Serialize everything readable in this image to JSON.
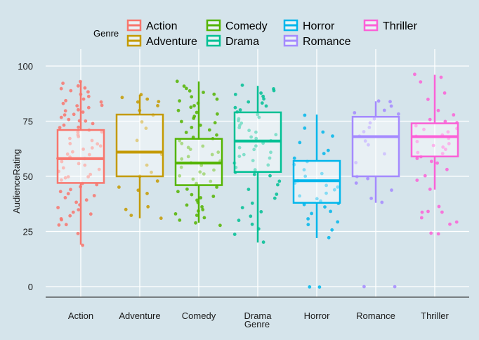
{
  "chart_data": {
    "type": "boxplot",
    "xlabel": "Genre",
    "ylabel": "AudienceRating",
    "ylim": [
      -5,
      105
    ],
    "yticks": [
      0,
      25,
      50,
      75,
      100
    ],
    "legend": {
      "title": "Genre",
      "placement": "top"
    },
    "grid": true,
    "series": [
      {
        "name": "Action",
        "color": "#f8766d",
        "min": 19,
        "q1": 47,
        "median": 58,
        "q3": 71,
        "max": 93,
        "points": [
          93,
          92,
          91,
          90,
          90,
          89,
          88,
          87,
          86,
          85,
          84,
          84,
          83,
          82,
          82,
          81,
          80,
          80,
          79,
          78,
          78,
          77,
          76,
          75,
          75,
          74,
          73,
          72,
          72,
          71,
          70,
          70,
          69,
          68,
          67,
          66,
          65,
          65,
          64,
          63,
          62,
          61,
          60,
          60,
          59,
          58,
          58,
          57,
          56,
          55,
          54,
          53,
          52,
          51,
          50,
          50,
          49,
          48,
          47,
          46,
          45,
          44,
          43,
          42,
          41,
          40,
          39,
          38,
          37,
          36,
          35,
          34,
          33,
          32,
          31,
          30,
          28,
          28,
          24,
          19
        ]
      },
      {
        "name": "Adventure",
        "color": "#c49a00",
        "min": 31,
        "q1": 50,
        "median": 61,
        "q3": 78,
        "max": 87,
        "points": [
          87,
          86,
          85,
          84,
          84,
          82,
          80,
          78,
          75,
          72,
          66,
          60,
          55,
          52,
          50,
          48,
          45,
          44,
          42,
          36,
          35,
          32,
          31
        ]
      },
      {
        "name": "Comedy",
        "color": "#53b400",
        "min": 29,
        "q1": 46,
        "median": 56,
        "q3": 67,
        "max": 93,
        "points": [
          93,
          91,
          90,
          89,
          88,
          87,
          86,
          85,
          84,
          83,
          82,
          81,
          80,
          79,
          78,
          77,
          76,
          75,
          74,
          73,
          72,
          71,
          70,
          69,
          68,
          67,
          66,
          65,
          64,
          63,
          62,
          61,
          60,
          59,
          58,
          57,
          56,
          55,
          54,
          53,
          52,
          51,
          50,
          49,
          48,
          47,
          46,
          45,
          44,
          43,
          42,
          41,
          40,
          39,
          38,
          37,
          36,
          35,
          34,
          33,
          32,
          31,
          30,
          29,
          28
        ]
      },
      {
        "name": "Drama",
        "color": "#00c094",
        "min": 20,
        "q1": 52,
        "median": 66,
        "q3": 79,
        "max": 91,
        "points": [
          91,
          90,
          89,
          88,
          87,
          86,
          85,
          84,
          83,
          82,
          81,
          80,
          79,
          78,
          77,
          76,
          75,
          74,
          73,
          72,
          71,
          70,
          69,
          68,
          67,
          66,
          65,
          64,
          63,
          62,
          61,
          60,
          59,
          58,
          57,
          56,
          55,
          54,
          53,
          52,
          51,
          50,
          48,
          46,
          44,
          42,
          40,
          38,
          36,
          34,
          32,
          30,
          28,
          26,
          24,
          20
        ]
      },
      {
        "name": "Horror",
        "color": "#00b6eb",
        "min": 22,
        "q1": 38,
        "median": 48,
        "q3": 57,
        "max": 78,
        "points": [
          78,
          72,
          70,
          68,
          65,
          62,
          60,
          58,
          57,
          55,
          53,
          51,
          50,
          48,
          47,
          46,
          45,
          44,
          42,
          41,
          40,
          39,
          38,
          37,
          36,
          34,
          33,
          31,
          29,
          28,
          26,
          22,
          0,
          0
        ]
      },
      {
        "name": "Romance",
        "color": "#a58aff",
        "min": 38,
        "q1": 50,
        "median": 68,
        "q3": 77,
        "max": 84,
        "points": [
          84,
          84,
          82,
          80,
          79,
          78,
          76,
          74,
          72,
          70,
          68,
          66,
          64,
          60,
          56,
          50,
          49,
          47,
          44,
          40,
          38,
          0,
          0
        ]
      },
      {
        "name": "Thriller",
        "color": "#fb61d7",
        "min": 44,
        "q1": 59,
        "median": 68,
        "q3": 74,
        "max": 96,
        "points": [
          96,
          95,
          93,
          88,
          85,
          80,
          78,
          76,
          75,
          74,
          73,
          72,
          71,
          70,
          69,
          68,
          67,
          66,
          65,
          64,
          63,
          62,
          61,
          60,
          59,
          58,
          57,
          56,
          53,
          50,
          48,
          44,
          36,
          34,
          34,
          34,
          31,
          29,
          28,
          24,
          24
        ]
      }
    ]
  }
}
